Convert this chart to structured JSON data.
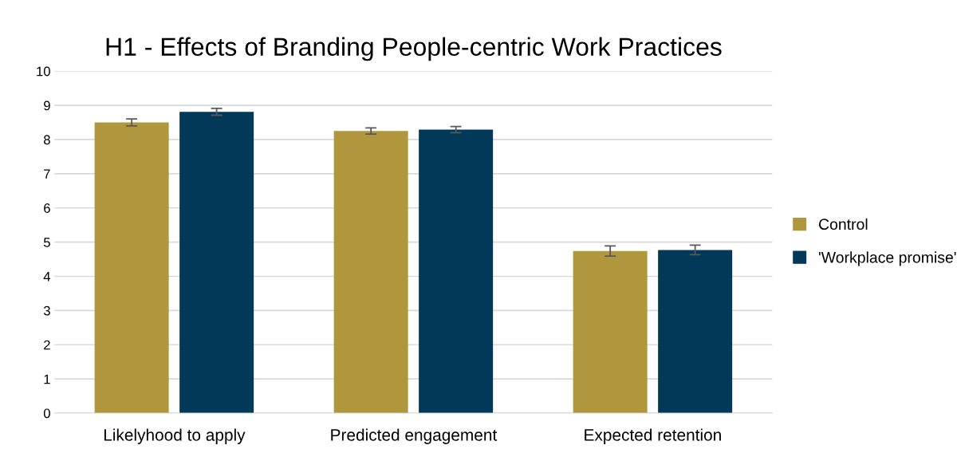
{
  "chart_data": {
    "type": "bar",
    "title": "H1 - Effects of Branding People-centric Work Practices",
    "categories": [
      "Likelyhood to apply",
      "Predicted engagement",
      "Expected retention"
    ],
    "series": [
      {
        "name": "Control",
        "color": "#b0963c",
        "values": [
          8.5,
          8.25,
          4.74
        ],
        "errors": [
          0.1,
          0.09,
          0.15
        ]
      },
      {
        "name": "'Workplace promise'",
        "color": "#023858",
        "values": [
          8.81,
          8.29,
          4.77
        ],
        "errors": [
          0.1,
          0.09,
          0.14
        ]
      }
    ],
    "ylim": [
      0,
      10
    ],
    "yticks": [
      0,
      1,
      2,
      3,
      4,
      5,
      6,
      7,
      8,
      9,
      10
    ],
    "grid": "y",
    "legend": "right"
  }
}
